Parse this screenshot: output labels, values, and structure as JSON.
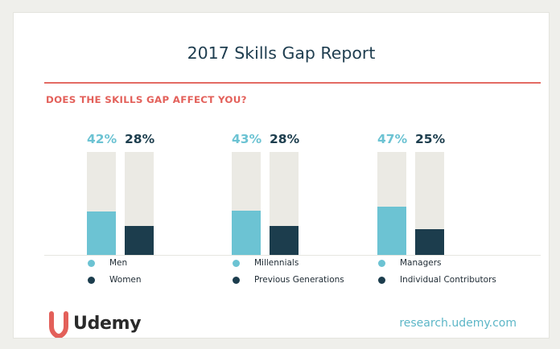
{
  "title": "2017 Skills Gap Report",
  "question": "DOES THE SKILLS GAP AFFECT YOU?",
  "brand": {
    "name": "Udemy",
    "url": "research.udemy.com"
  },
  "colors": {
    "teal": "#6cc3d3",
    "navy": "#1c3d4d",
    "track": "#ebeae4",
    "accent": "#e3605a",
    "title": "#1e3d4f"
  },
  "chart_data": {
    "type": "bar",
    "ylim": [
      0,
      100
    ],
    "groups": [
      {
        "series": [
          {
            "name": "Men",
            "label": "42%",
            "value": 42,
            "color": "#6cc3d3"
          },
          {
            "name": "Women",
            "label": "28%",
            "value": 28,
            "color": "#1c3d4d"
          }
        ]
      },
      {
        "series": [
          {
            "name": "Millennials",
            "label": "43%",
            "value": 43,
            "color": "#6cc3d3"
          },
          {
            "name": "Previous Generations",
            "label": "28%",
            "value": 28,
            "color": "#1c3d4d"
          }
        ]
      },
      {
        "series": [
          {
            "name": "Managers",
            "label": "47%",
            "value": 47,
            "color": "#6cc3d3"
          },
          {
            "name": "Individual Contributors",
            "label": "25%",
            "value": 25,
            "color": "#1c3d4d"
          }
        ]
      }
    ]
  }
}
